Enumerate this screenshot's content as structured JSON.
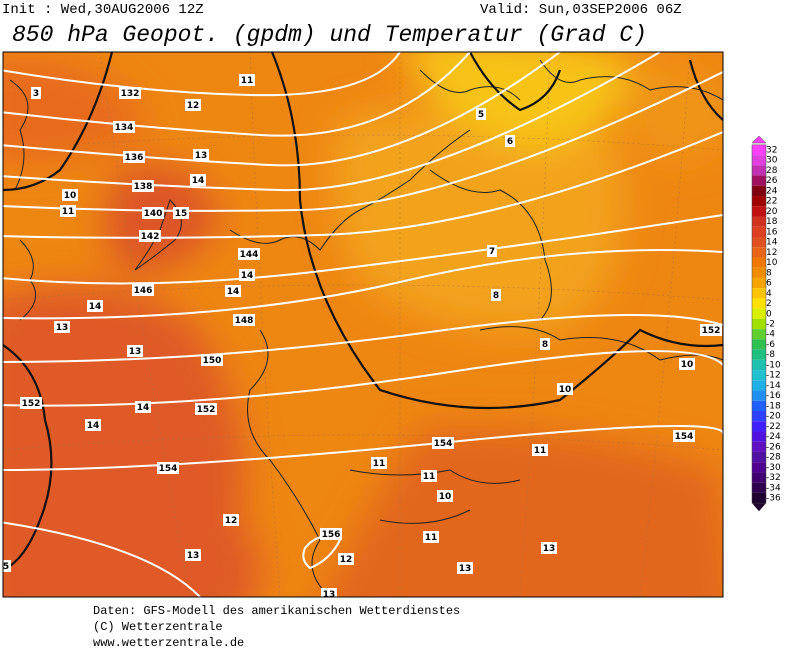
{
  "header": {
    "init": "Init : Wed,30AUG2006 12Z",
    "valid": "Valid: Sun,03SEP2006 06Z",
    "title": "850 hPa Geopot. (gpdm) und Temperatur (Grad C)"
  },
  "map": {
    "labels": [
      "3",
      "132",
      "11",
      "12",
      "134",
      "136",
      "13",
      "138",
      "14",
      "10",
      "11",
      "140",
      "15",
      "142",
      "144",
      "14",
      "146",
      "14",
      "14",
      "148",
      "13",
      "13",
      "150",
      "152",
      "14",
      "152",
      "14",
      "154",
      "12",
      "13",
      "5",
      "13",
      "156",
      "12",
      "5",
      "6",
      "7",
      "8",
      "8",
      "152",
      "10",
      "10",
      "154",
      "154",
      "11",
      "11",
      "11",
      "10",
      "11",
      "13",
      "13"
    ]
  },
  "colorbar": {
    "ticks": [
      32,
      30,
      28,
      26,
      24,
      22,
      20,
      18,
      16,
      14,
      12,
      10,
      8,
      6,
      4,
      2,
      0,
      -2,
      -4,
      -6,
      -8,
      -10,
      -12,
      -14,
      -16,
      -18,
      -20,
      -22,
      -24,
      -26,
      -28,
      -30,
      -32,
      -34,
      -36
    ],
    "colors": [
      "#ff40ff",
      "#e040e0",
      "#c030b0",
      "#a01060",
      "#800010",
      "#a00000",
      "#c01010",
      "#d03020",
      "#dc4020",
      "#e05020",
      "#e86418",
      "#f07800",
      "#f08c00",
      "#f5a400",
      "#ffc400",
      "#ffe000",
      "#d8f000",
      "#a0e000",
      "#60d030",
      "#30c050",
      "#20c080",
      "#20c0b0",
      "#20c0d0",
      "#20b0e8",
      "#2090f0",
      "#2060ff",
      "#3040ff",
      "#4020ff",
      "#5010e0",
      "#6010c0",
      "#5010a0",
      "#500090",
      "#400070",
      "#300050",
      "#200030"
    ]
  },
  "footer": {
    "lines": [
      "Daten: GFS-Modell des amerikanischen Wetterdienstes",
      "(C) Wetterzentrale",
      "www.wetterzentrale.de"
    ]
  }
}
